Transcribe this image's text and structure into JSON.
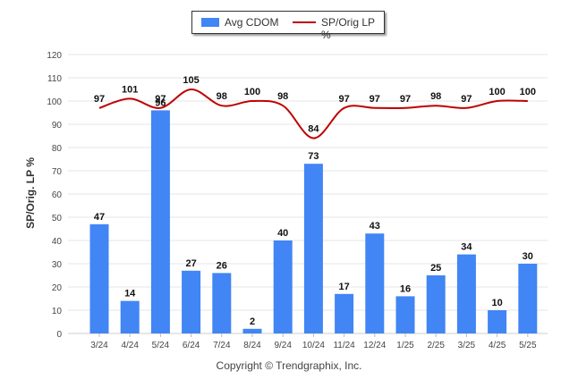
{
  "chart_data": {
    "type": "bar",
    "categories": [
      "3/24",
      "4/24",
      "5/24",
      "6/24",
      "7/24",
      "8/24",
      "9/24",
      "10/24",
      "11/24",
      "12/24",
      "1/25",
      "2/25",
      "3/25",
      "4/25",
      "5/25"
    ],
    "series": [
      {
        "name": "Avg CDOM",
        "type": "bar",
        "color": "#4285f4",
        "values": [
          47,
          14,
          96,
          27,
          26,
          2,
          40,
          73,
          17,
          43,
          16,
          25,
          34,
          10,
          30
        ]
      },
      {
        "name": "SP/Orig LP %",
        "type": "line",
        "color": "#c00000",
        "values": [
          97,
          101,
          97,
          105,
          98,
          100,
          98,
          84,
          97,
          97,
          97,
          98,
          97,
          100,
          100
        ]
      }
    ],
    "ylabel": "SP/Orig. LP %",
    "xlabel": "",
    "ylim": [
      0,
      120
    ],
    "yticks": [
      0,
      10,
      20,
      30,
      40,
      50,
      60,
      70,
      80,
      90,
      100,
      110,
      120
    ],
    "grid": true,
    "legend_position": "top-center"
  },
  "footer": {
    "copyright": "Copyright © Trendgraphix, Inc."
  }
}
